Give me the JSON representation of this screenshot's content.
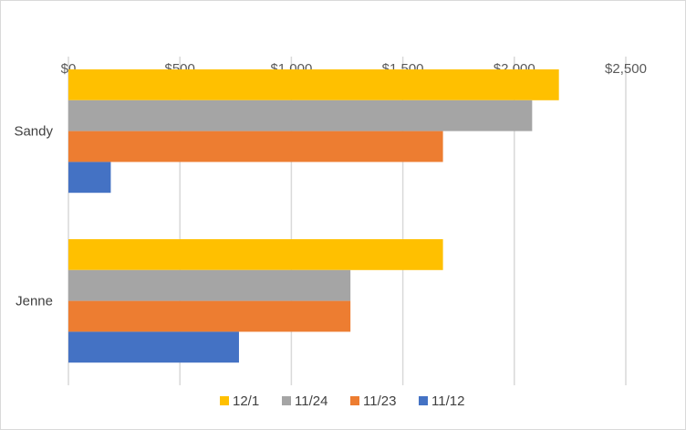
{
  "chart_data": {
    "type": "bar",
    "orientation": "horizontal",
    "title": "",
    "xlabel": "",
    "ylabel": "",
    "categories": [
      "Sandy",
      "Jenne"
    ],
    "series": [
      {
        "name": "12/1",
        "color": "#FFC000",
        "values": [
          2200,
          1680
        ]
      },
      {
        "name": "11/24",
        "color": "#A5A5A5",
        "values": [
          2080,
          1265
        ]
      },
      {
        "name": "11/23",
        "color": "#ED7D31",
        "values": [
          1680,
          1265
        ]
      },
      {
        "name": "11/12",
        "color": "#4472C4",
        "values": [
          190,
          765
        ]
      }
    ],
    "xlim": [
      0,
      2500
    ],
    "xticks": [
      0,
      500,
      1000,
      1500,
      2000,
      2500
    ],
    "xtick_labels": [
      "$0",
      "$500",
      "$1,000",
      "$1,500",
      "$2,000",
      "$2,500"
    ],
    "axis_position": "top",
    "grid": true,
    "legend": {
      "placement": "bottom",
      "order": [
        "12/1",
        "11/24",
        "11/23",
        "11/12"
      ]
    }
  }
}
